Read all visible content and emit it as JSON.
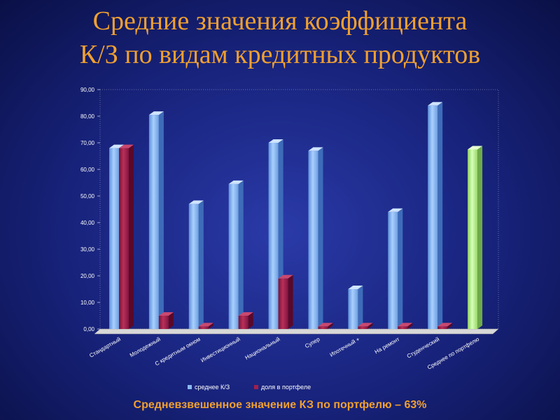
{
  "title_lines": [
    "Средние значения коэффициента",
    "К/З по видам кредитных продуктов"
  ],
  "footer_note": "Средневзвешенное значение КЗ по портфелю – 63%",
  "colors": {
    "series1": "#8ab8f0",
    "series2": "#a0204a",
    "highlight": "#b8ee88",
    "axis_text": "#ffffff",
    "title": "#f0a030"
  },
  "chart_data": {
    "type": "bar",
    "categories": [
      "Стандартный",
      "Молодежный",
      "С кредитным окном",
      "Инвестиционный",
      "Национальный",
      "Супер",
      "Ипотечный +",
      "На ремонт",
      "Студенческий",
      "Среднее по портфелю"
    ],
    "y_tick_labels": [
      "0,00",
      "10,00",
      "20,00",
      "30,00",
      "40,00",
      "50,00",
      "60,00",
      "70,00",
      "80,00",
      "90,00"
    ],
    "ylim": [
      0,
      90
    ],
    "grid": false,
    "legend_position": "bottom",
    "series": [
      {
        "name": "среднее К/З",
        "values": [
          68,
          80.5,
          47,
          54.5,
          70,
          67,
          15,
          44,
          84,
          67.5
        ]
      },
      {
        "name": "доля в портфеле",
        "values": [
          68,
          5,
          1,
          5,
          19,
          1,
          1,
          1,
          1,
          null
        ]
      }
    ]
  }
}
